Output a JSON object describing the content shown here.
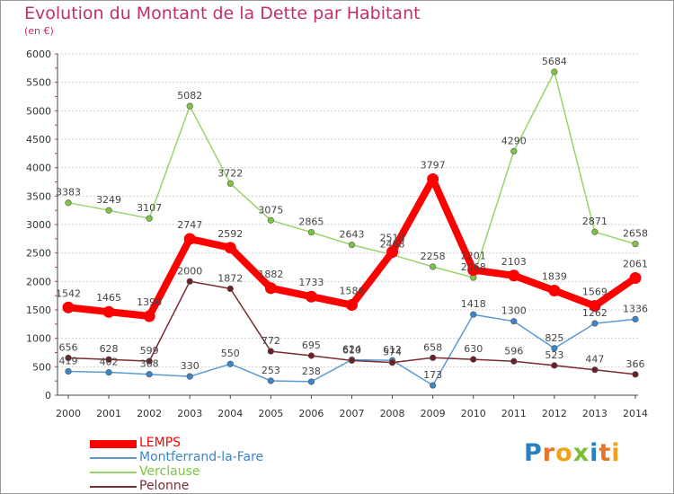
{
  "header": {
    "title": "Evolution du Montant de la Dette par Habitant",
    "subtitle": "(en €)"
  },
  "logo": {
    "text": "Proxiti"
  },
  "colors": {
    "title": "#c0306e",
    "axis": "#444444",
    "tick_marks": "#c0306e",
    "grid": "#d0d0d0"
  },
  "chart_data": {
    "type": "line",
    "title": "Evolution du Montant de la Dette par Habitant",
    "subtitle": "(en €)",
    "x": [
      "2000",
      "2001",
      "2002",
      "2003",
      "2004",
      "2005",
      "2006",
      "2007",
      "2008",
      "2009",
      "2010",
      "2011",
      "2012",
      "2013",
      "2014"
    ],
    "ylim": [
      0,
      6000
    ],
    "yticks": [
      0,
      500,
      1000,
      1500,
      2000,
      2500,
      3000,
      3500,
      4000,
      4500,
      5000,
      5500,
      6000
    ],
    "grid": true,
    "legend_position": "bottom-left",
    "series": [
      {
        "name": "LEMPS",
        "color": "#ff0000",
        "marker": "#ff0000",
        "thick": true,
        "values": [
          1542,
          1465,
          1390,
          2747,
          2592,
          1882,
          1733,
          1586,
          2518,
          3797,
          2201,
          2103,
          1839,
          1569,
          2061
        ]
      },
      {
        "name": "Montferrand-la-Fare",
        "color": "#5b9bd5",
        "marker": "#3a86c8",
        "thick": false,
        "values": [
          419,
          402,
          368,
          330,
          550,
          253,
          238,
          624,
          612,
          173,
          1418,
          1300,
          825,
          1262,
          1336
        ]
      },
      {
        "name": "Verclause",
        "color": "#99d36b",
        "marker": "#7cc540",
        "thick": false,
        "values": [
          3383,
          3249,
          3107,
          5082,
          3722,
          3075,
          2865,
          2643,
          2468,
          2258,
          2068,
          4290,
          5684,
          2871,
          2658
        ]
      },
      {
        "name": "Pelonne",
        "color": "#7a2a30",
        "marker": "#6b1e24",
        "thick": false,
        "values": [
          656,
          628,
          599,
          2000,
          1872,
          772,
          695,
          610,
          574,
          658,
          630,
          596,
          523,
          447,
          366
        ]
      }
    ]
  }
}
